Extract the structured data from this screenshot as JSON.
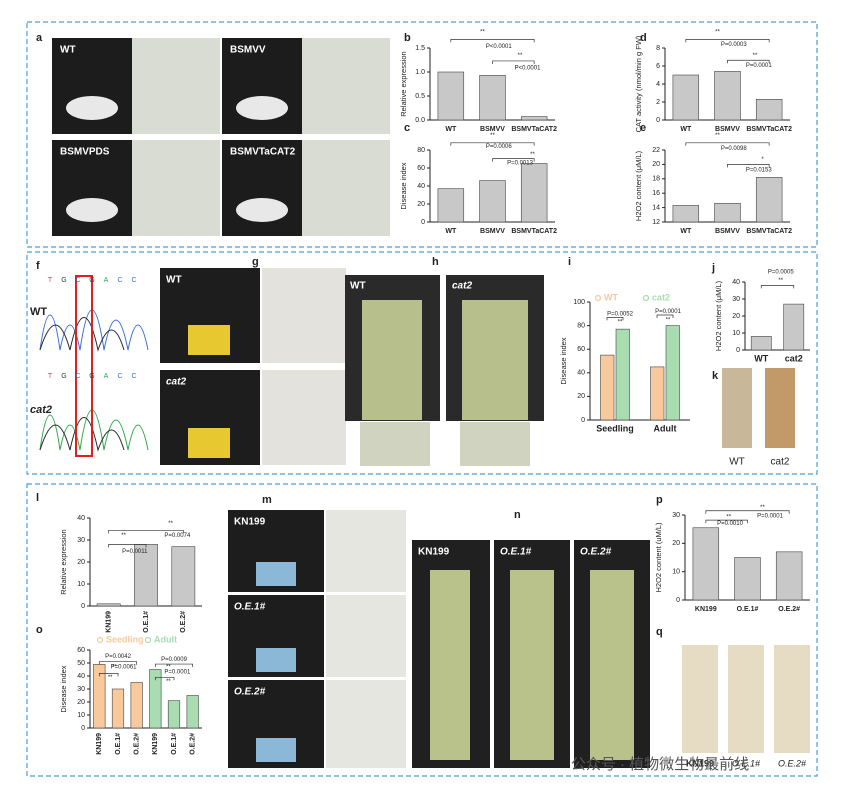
{
  "panel_letters": [
    "a",
    "b",
    "c",
    "d",
    "e",
    "f",
    "g",
    "h",
    "i",
    "j",
    "k",
    "l",
    "m",
    "n",
    "o",
    "p",
    "q"
  ],
  "photo_labels": {
    "a": [
      "WT",
      "BSMVV",
      "BSMVPDS",
      "BSMVTaCAT2"
    ],
    "f": [
      "WT",
      "cat2"
    ],
    "f_bases": [
      "T",
      "G",
      "C",
      "G",
      "A",
      "C",
      "C"
    ],
    "g": [
      "WT",
      "cat2"
    ],
    "h": [
      "WT",
      "cat2"
    ],
    "k": [
      "WT",
      "cat2"
    ],
    "m": [
      "KN199",
      "O.E.1#",
      "O.E.2#"
    ],
    "n": [
      "KN199",
      "O.E.1#",
      "O.E.2#"
    ],
    "q": [
      "KN199",
      "O.E.1#",
      "O.E.2#"
    ]
  },
  "watermark": "公众号 · 植物微生物最前线",
  "chart_data": [
    {
      "type": "bar",
      "ylabel": "Relative expression",
      "categories": [
        "WT",
        "BSMVV",
        "BSMVTaCAT2"
      ],
      "values": [
        1.0,
        0.93,
        0.07
      ],
      "color": "#c8c8c8",
      "ylim": [
        0,
        1.5
      ],
      "yticks": [
        {
          "value": 0,
          "label": "0.0"
        },
        0.5,
        {
          "value": 1,
          "label": "1.0"
        },
        1.5
      ],
      "annotations": [
        "**",
        "P<0.0001",
        "**",
        "P<0.0001"
      ]
    },
    {
      "type": "bar",
      "ylabel": "Disease index",
      "categories": [
        "WT",
        "BSMVV",
        "BSMVTaCAT2"
      ],
      "values": [
        37,
        46,
        65
      ],
      "color": "#c8c8c8",
      "ylim": [
        0,
        80
      ],
      "yticks": [
        0,
        20,
        40,
        60,
        80
      ],
      "annotations": [
        "**",
        "P=0.0006",
        "**",
        "P=0.0013"
      ]
    },
    {
      "type": "bar",
      "ylabel": "CAT activity (nmol/min g FW)",
      "categories": [
        "WT",
        "BSMVV",
        "BSMVTaCAT2"
      ],
      "values": [
        5.0,
        5.4,
        2.3
      ],
      "color": "#c8c8c8",
      "ylim": [
        0,
        8
      ],
      "yticks": [
        0,
        2,
        4,
        6,
        8
      ],
      "annotations": [
        "**",
        "P=0.0003",
        "**",
        "P=0.0001"
      ]
    },
    {
      "type": "bar",
      "ylabel": "H2O2 content (μM/L)",
      "categories": [
        "WT",
        "BSMVV",
        "BSMVTaCAT2"
      ],
      "values": [
        14.3,
        14.6,
        18.2
      ],
      "color": "#c8c8c8",
      "ylim": [
        12,
        22
      ],
      "yticks": [
        12,
        14,
        16,
        18,
        20,
        22
      ],
      "annotations": [
        "**",
        "P=0.0098",
        "*",
        "P=0.0153"
      ]
    },
    {
      "type": "bar",
      "ylabel": "Disease index",
      "categories": [
        "Seedling",
        "Adult"
      ],
      "series": [
        {
          "name": "WT",
          "color": "#f8c99c",
          "values": [
            55,
            45
          ]
        },
        {
          "name": "cat2",
          "color": "#a9dcb1",
          "values": [
            77,
            80
          ]
        }
      ],
      "ylim": [
        0,
        100
      ],
      "yticks": [
        0,
        20,
        40,
        60,
        80,
        100
      ],
      "annotations": [
        "P=0.0052",
        "**",
        "P=0.0001",
        "**"
      ]
    },
    {
      "type": "bar",
      "ylabel": "H2O2 content (μM/L)",
      "categories": [
        "WT",
        "cat2"
      ],
      "values": [
        8,
        27
      ],
      "color": "#c8c8c8",
      "ylim": [
        0,
        40
      ],
      "yticks": [
        0,
        10,
        20,
        30,
        40
      ],
      "annotations": [
        "P=0.0005",
        "**"
      ]
    },
    {
      "type": "bar",
      "ylabel": "Relative expression",
      "categories": [
        "KN199",
        "O.E.1#",
        "O.E.2#"
      ],
      "values": [
        1,
        28,
        27
      ],
      "color": "#c8c8c8",
      "ylim": [
        0,
        40
      ],
      "yticks": [
        0,
        10,
        20,
        30,
        40
      ],
      "annotations": [
        "**",
        "P=0.0011",
        "**",
        "P=0.0074"
      ]
    },
    {
      "type": "bar",
      "ylabel": "Disease index",
      "categories": [
        "KN199",
        "O.E.1#",
        "O.E.2#",
        "KN199",
        "O.E.1#",
        "O.E.2#"
      ],
      "series": [
        {
          "name": "Seedling",
          "color": "#f8c99c",
          "values": [
            49,
            30,
            35,
            null,
            null,
            null
          ]
        },
        {
          "name": "Adult",
          "color": "#a9dcb1",
          "values": [
            null,
            null,
            null,
            45,
            21,
            25
          ]
        }
      ],
      "ylim": [
        0,
        60
      ],
      "yticks": [
        0,
        10,
        20,
        30,
        40,
        50,
        60
      ],
      "annotations": [
        "P=0.0042",
        "**",
        "P=0.0061",
        "**",
        "P=0.0009",
        "**",
        "P=0.0001",
        "**"
      ]
    },
    {
      "type": "bar",
      "ylabel": "H2O2 content (uM/L)",
      "categories": [
        "KN199",
        "O.E.1#",
        "O.E.2#"
      ],
      "values": [
        25.5,
        15,
        17
      ],
      "color": "#c8c8c8",
      "ylim": [
        0,
        30
      ],
      "yticks": [
        0,
        10,
        20,
        30
      ],
      "annotations": [
        "**",
        "P=0.0010",
        "**",
        "P=0.0001"
      ]
    }
  ]
}
